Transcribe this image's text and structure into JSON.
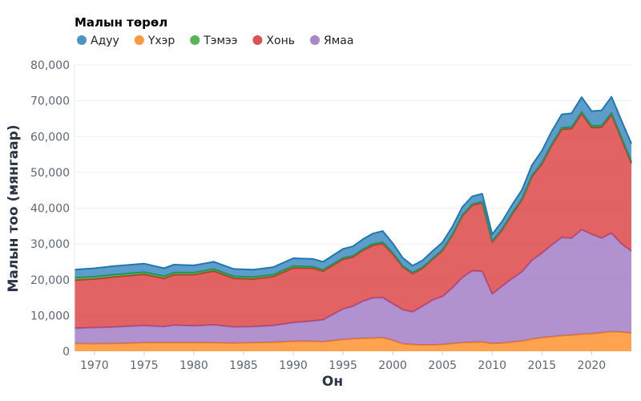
{
  "chart_data": {
    "type": "area",
    "stacked": true,
    "xlabel": "Он",
    "ylabel": "Малын тоо (мянгаар)",
    "legend_title": "Малын төрөл",
    "legend_placement": "top-left",
    "grid": true,
    "xlim": [
      1968,
      2024
    ],
    "ylim": [
      0,
      80000
    ],
    "x_ticks": [
      1970,
      1975,
      1980,
      1985,
      1990,
      1995,
      2000,
      2005,
      2010,
      2015,
      2020
    ],
    "y_ticks": [
      0,
      10000,
      20000,
      30000,
      40000,
      50000,
      60000,
      70000,
      80000
    ],
    "y_tick_labels": [
      "0",
      "10,000",
      "20,000",
      "30,000",
      "40,000",
      "50,000",
      "60,000",
      "70,000",
      "80,000"
    ],
    "legend_order": [
      "Адуу",
      "Үхэр",
      "Тэмээ",
      "Хонь",
      "Ямаа"
    ],
    "x": [
      1968,
      1970,
      1972,
      1975,
      1977,
      1978,
      1980,
      1982,
      1984,
      1986,
      1988,
      1990,
      1992,
      1993,
      1995,
      1996,
      1997,
      1998,
      1999,
      2000,
      2001,
      2002,
      2003,
      2004,
      2005,
      2006,
      2007,
      2008,
      2009,
      2010,
      2011,
      2012,
      2013,
      2014,
      2015,
      2016,
      2017,
      2018,
      2019,
      2020,
      2021,
      2022,
      2023,
      2024
    ],
    "series": [
      {
        "name": "Үхэр",
        "color": "#ff7f0e",
        "values": [
          2200,
          2100,
          2200,
          2400,
          2400,
          2400,
          2400,
          2400,
          2300,
          2400,
          2500,
          2800,
          2800,
          2700,
          3300,
          3500,
          3600,
          3700,
          3800,
          3100,
          2100,
          1900,
          1800,
          1800,
          1900,
          2200,
          2400,
          2500,
          2600,
          2200,
          2300,
          2600,
          2900,
          3400,
          3800,
          4100,
          4400,
          4500,
          4800,
          4900,
          5200,
          5500,
          5400,
          5100
        ]
      },
      {
        "name": "Ямаа",
        "color": "#9467bd",
        "values": [
          4200,
          4500,
          4600,
          4800,
          4500,
          4900,
          4700,
          5000,
          4500,
          4500,
          4700,
          5200,
          5700,
          6100,
          8500,
          9100,
          10400,
          11200,
          11200,
          10200,
          9500,
          9100,
          10800,
          12500,
          13400,
          15500,
          18200,
          20000,
          19700,
          13800,
          15900,
          17700,
          19300,
          22000,
          23600,
          25600,
          27400,
          27100,
          29200,
          27800,
          26400,
          27500,
          24600,
          22900
        ]
      },
      {
        "name": "Хонь",
        "color": "#d62728",
        "values": [
          13500,
          13600,
          14000,
          14300,
          13500,
          14100,
          14300,
          15000,
          13600,
          13300,
          13700,
          15300,
          14700,
          13600,
          13900,
          13700,
          14200,
          14700,
          15100,
          13900,
          12000,
          10700,
          10600,
          11400,
          12800,
          14700,
          17200,
          18300,
          19200,
          14500,
          15700,
          18000,
          20100,
          23400,
          24900,
          27800,
          30200,
          30600,
          32400,
          29800,
          31000,
          33100,
          29300,
          24500
        ]
      },
      {
        "name": "Тэмээ",
        "color": "#2ca02c",
        "values": [
          640,
          630,
          620,
          600,
          590,
          590,
          590,
          580,
          560,
          550,
          550,
          540,
          420,
          370,
          370,
          360,
          360,
          360,
          360,
          320,
          290,
          250,
          260,
          260,
          260,
          250,
          260,
          270,
          280,
          270,
          280,
          310,
          320,
          350,
          370,
          400,
          430,
          460,
          470,
          470,
          470,
          480,
          490,
          500
        ]
      },
      {
        "name": "Адуу",
        "color": "#1f77b4",
        "values": [
          2260,
          2370,
          2380,
          2400,
          2210,
          2210,
          2010,
          2020,
          2040,
          2050,
          2050,
          2160,
          2180,
          2230,
          2530,
          2640,
          2740,
          2940,
          3140,
          2680,
          2210,
          1950,
          1940,
          2040,
          2040,
          2150,
          2240,
          2230,
          2220,
          1930,
          2120,
          2290,
          2480,
          2850,
          3330,
          3600,
          3770,
          3840,
          4130,
          4130,
          4230,
          4520,
          4710,
          5000
        ]
      }
    ]
  }
}
